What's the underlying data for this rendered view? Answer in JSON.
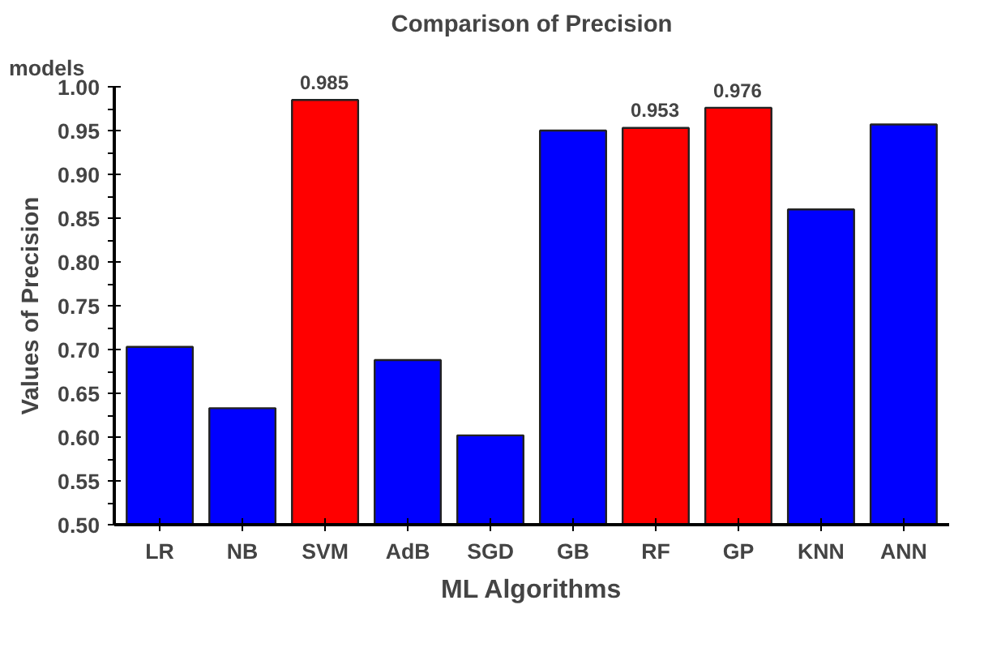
{
  "chart_data": {
    "type": "bar",
    "title": "Comparison of Precision",
    "xlabel": "ML Algorithms",
    "ylabel": "Values of Precision",
    "annotations": [
      "models"
    ],
    "categories": [
      "LR",
      "NB",
      "SVM",
      "AdB",
      "SGD",
      "GB",
      "RF",
      "GP",
      "KNN",
      "ANN"
    ],
    "values": [
      0.703,
      0.633,
      0.985,
      0.688,
      0.602,
      0.95,
      0.953,
      0.976,
      0.86,
      0.957
    ],
    "colors": [
      "#0000ff",
      "#0000ff",
      "#ff0000",
      "#0000ff",
      "#0000ff",
      "#0000ff",
      "#ff0000",
      "#ff0000",
      "#0000ff",
      "#0000ff"
    ],
    "value_labels": [
      null,
      null,
      "0.985",
      null,
      null,
      null,
      "0.953",
      "0.976",
      null,
      null
    ],
    "ylim": [
      0.5,
      1.0
    ],
    "yticks": [
      {
        "value": 0.5,
        "label": "0.50"
      },
      0.55,
      {
        "value": 0.6,
        "label": "0.60"
      },
      0.65,
      {
        "value": 0.7,
        "label": "0.70"
      },
      0.75,
      {
        "value": 0.8,
        "label": "0.80"
      },
      0.85,
      {
        "value": 0.9,
        "label": "0.90"
      },
      0.95,
      {
        "value": 1.0,
        "label": "1.00"
      }
    ],
    "grid": false
  }
}
